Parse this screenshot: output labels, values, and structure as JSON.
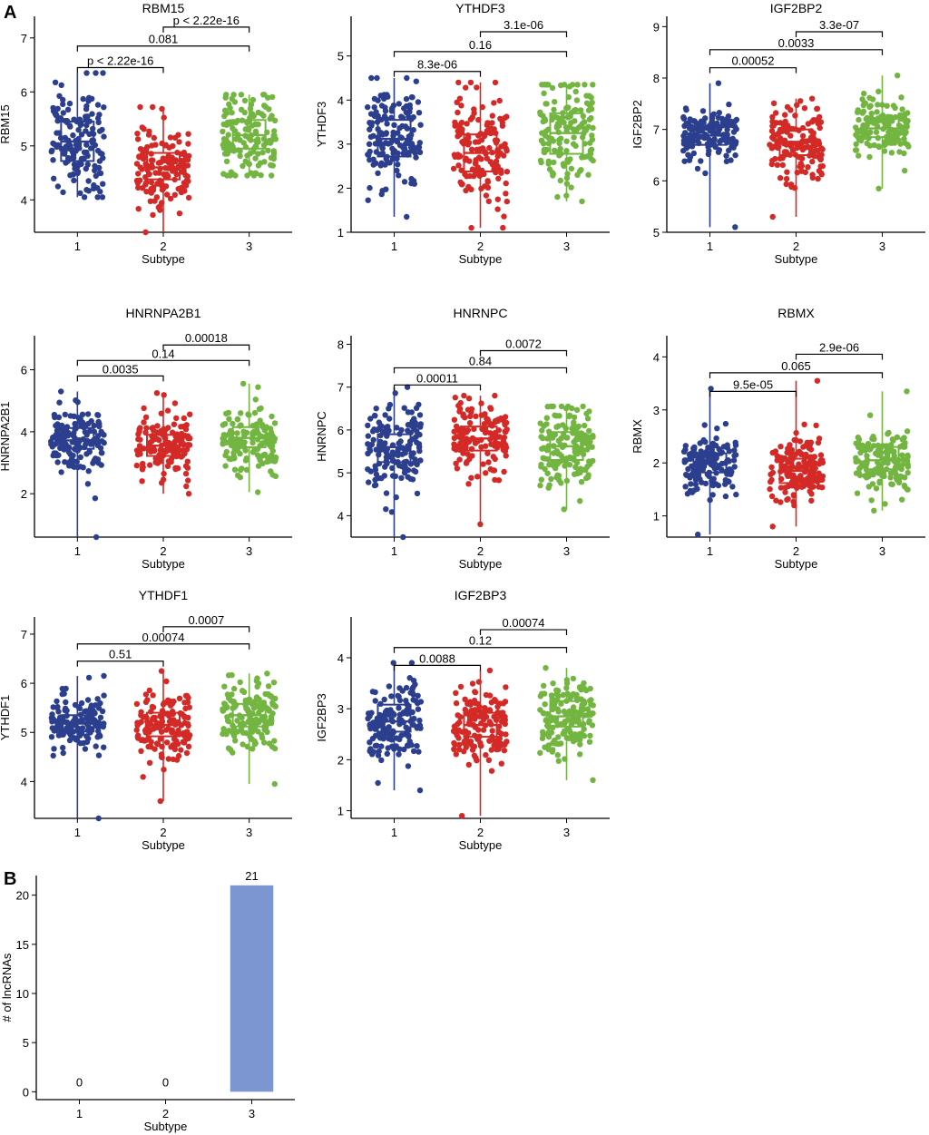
{
  "panel_labels": {
    "a": "A",
    "b": "B"
  },
  "colors": {
    "subtype_1": "#2c3f8f",
    "subtype_2": "#d42a27",
    "subtype_3": "#72b541",
    "bar": "#7b96d1",
    "axis": "#000000"
  },
  "chart_data": [
    {
      "type": "box",
      "title": "RBM15",
      "xlabel": "Subtype",
      "ylabel": "RBM15",
      "categories": [
        "1",
        "2",
        "3"
      ],
      "ylim": [
        3.4,
        7.4
      ],
      "yticks": [
        4,
        5,
        6,
        7
      ],
      "stats": [
        {
          "q1": 4.72,
          "median": 5.08,
          "q3": 5.45,
          "low": 4.05,
          "high": 6.35
        },
        {
          "q1": 4.38,
          "median": 4.6,
          "q3": 4.87,
          "low": 3.4,
          "high": 5.72
        },
        {
          "q1": 4.95,
          "median": 5.2,
          "q3": 5.48,
          "low": 4.45,
          "high": 5.95
        }
      ],
      "comparisons": [
        {
          "from": "1",
          "to": "2",
          "label": "p < 2.22e-16",
          "y": 6.45
        },
        {
          "from": "1",
          "to": "3",
          "label": "0.081",
          "y": 6.85
        },
        {
          "from": "2",
          "to": "3",
          "label": "p < 2.22e-16",
          "y": 7.2
        }
      ]
    },
    {
      "type": "box",
      "title": "YTHDF3",
      "xlabel": "Subtype",
      "ylabel": "YTHDF3",
      "categories": [
        "1",
        "2",
        "3"
      ],
      "ylim": [
        1,
        5.9
      ],
      "yticks": [
        1,
        2,
        3,
        4,
        5
      ],
      "stats": [
        {
          "q1": 2.72,
          "median": 3.12,
          "q3": 3.55,
          "low": 1.35,
          "high": 4.5
        },
        {
          "q1": 2.38,
          "median": 2.8,
          "q3": 3.22,
          "low": 1.1,
          "high": 4.4
        },
        {
          "q1": 2.78,
          "median": 3.25,
          "q3": 3.7,
          "low": 1.7,
          "high": 4.35
        }
      ],
      "comparisons": [
        {
          "from": "1",
          "to": "2",
          "label": "8.3e-06",
          "y": 4.65
        },
        {
          "from": "1",
          "to": "3",
          "label": "0.16",
          "y": 5.1
        },
        {
          "from": "2",
          "to": "3",
          "label": "3.1e-06",
          "y": 5.55
        }
      ]
    },
    {
      "type": "box",
      "title": "IGF2BP2",
      "xlabel": "Subtype",
      "ylabel": "IGF2BP2",
      "categories": [
        "1",
        "2",
        "3"
      ],
      "ylim": [
        5,
        9.2
      ],
      "yticks": [
        5,
        6,
        7,
        8,
        9
      ],
      "stats": [
        {
          "q1": 6.7,
          "median": 6.88,
          "q3": 7.05,
          "low": 5.1,
          "high": 7.9
        },
        {
          "q1": 6.5,
          "median": 6.76,
          "q3": 7.0,
          "low": 5.3,
          "high": 7.6
        },
        {
          "q1": 6.85,
          "median": 7.02,
          "q3": 7.22,
          "low": 5.85,
          "high": 8.05
        }
      ],
      "comparisons": [
        {
          "from": "1",
          "to": "2",
          "label": "0.00052",
          "y": 8.2
        },
        {
          "from": "1",
          "to": "3",
          "label": "0.0033",
          "y": 8.55
        },
        {
          "from": "2",
          "to": "3",
          "label": "3.3e-07",
          "y": 8.9
        }
      ]
    },
    {
      "type": "box",
      "title": "HNRNPA2B1",
      "xlabel": "Subtype",
      "ylabel": "HNRNPA2B1",
      "categories": [
        "1",
        "2",
        "3"
      ],
      "ylim": [
        0.6,
        7.1
      ],
      "yticks": [
        2,
        4,
        6
      ],
      "stats": [
        {
          "q1": 3.45,
          "median": 3.72,
          "q3": 4.12,
          "low": 0.6,
          "high": 5.3
        },
        {
          "q1": 3.22,
          "median": 3.55,
          "q3": 3.9,
          "low": 2.0,
          "high": 5.25
        },
        {
          "q1": 3.5,
          "median": 3.8,
          "q3": 4.15,
          "low": 2.05,
          "high": 5.55
        }
      ],
      "comparisons": [
        {
          "from": "1",
          "to": "2",
          "label": "0.0035",
          "y": 5.8
        },
        {
          "from": "1",
          "to": "3",
          "label": "0.14",
          "y": 6.3
        },
        {
          "from": "2",
          "to": "3",
          "label": "0.00018",
          "y": 6.8
        }
      ]
    },
    {
      "type": "box",
      "title": "HNRNPC",
      "xlabel": "Subtype",
      "ylabel": "HNRNPC",
      "categories": [
        "1",
        "2",
        "3"
      ],
      "ylim": [
        3.5,
        8.2
      ],
      "yticks": [
        4,
        5,
        6,
        7,
        8
      ],
      "stats": [
        {
          "q1": 5.25,
          "median": 5.6,
          "q3": 5.9,
          "low": 3.5,
          "high": 7.0
        },
        {
          "q1": 5.52,
          "median": 5.8,
          "q3": 6.08,
          "low": 3.8,
          "high": 6.8
        },
        {
          "q1": 5.3,
          "median": 5.62,
          "q3": 5.95,
          "low": 4.15,
          "high": 6.55
        }
      ],
      "comparisons": [
        {
          "from": "1",
          "to": "2",
          "label": "0.00011",
          "y": 7.05
        },
        {
          "from": "1",
          "to": "3",
          "label": "0.84",
          "y": 7.45
        },
        {
          "from": "2",
          "to": "3",
          "label": "0.0072",
          "y": 7.85
        }
      ]
    },
    {
      "type": "box",
      "title": "RBMX",
      "xlabel": "Subtype",
      "ylabel": "RBMX",
      "categories": [
        "1",
        "2",
        "3"
      ],
      "ylim": [
        0.6,
        4.4
      ],
      "yticks": [
        1,
        2,
        3,
        4
      ],
      "stats": [
        {
          "q1": 1.82,
          "median": 1.98,
          "q3": 2.18,
          "low": 0.65,
          "high": 3.4
        },
        {
          "q1": 1.62,
          "median": 1.85,
          "q3": 2.08,
          "low": 0.8,
          "high": 3.55
        },
        {
          "q1": 1.88,
          "median": 2.05,
          "q3": 2.3,
          "low": 1.1,
          "high": 3.35
        }
      ],
      "comparisons": [
        {
          "from": "1",
          "to": "2",
          "label": "9.5e-05",
          "y": 3.35
        },
        {
          "from": "1",
          "to": "3",
          "label": "0.065",
          "y": 3.7
        },
        {
          "from": "2",
          "to": "3",
          "label": "2.9e-06",
          "y": 4.05
        }
      ]
    },
    {
      "type": "box",
      "title": "YTHDF1",
      "xlabel": "Subtype",
      "ylabel": "YTHDF1",
      "categories": [
        "1",
        "2",
        "3"
      ],
      "ylim": [
        3.25,
        7.35
      ],
      "yticks": [
        4,
        5,
        6,
        7
      ],
      "stats": [
        {
          "q1": 5.02,
          "median": 5.18,
          "q3": 5.35,
          "low": 3.25,
          "high": 6.15
        },
        {
          "q1": 4.92,
          "median": 5.15,
          "q3": 5.4,
          "low": 3.6,
          "high": 6.25
        },
        {
          "q1": 5.12,
          "median": 5.35,
          "q3": 5.58,
          "low": 3.95,
          "high": 6.2
        }
      ],
      "comparisons": [
        {
          "from": "1",
          "to": "2",
          "label": "0.51",
          "y": 6.45
        },
        {
          "from": "1",
          "to": "3",
          "label": "0.00074",
          "y": 6.8
        },
        {
          "from": "2",
          "to": "3",
          "label": "0.0007",
          "y": 7.15
        }
      ]
    },
    {
      "type": "box",
      "title": "IGF2BP3",
      "xlabel": "Subtype",
      "ylabel": "IGF2BP3",
      "categories": [
        "1",
        "2",
        "3"
      ],
      "ylim": [
        0.85,
        4.8
      ],
      "yticks": [
        1,
        2,
        3,
        4
      ],
      "stats": [
        {
          "q1": 2.55,
          "median": 2.75,
          "q3": 3.08,
          "low": 1.4,
          "high": 3.9
        },
        {
          "q1": 2.45,
          "median": 2.68,
          "q3": 2.92,
          "low": 0.9,
          "high": 3.75
        },
        {
          "q1": 2.65,
          "median": 2.85,
          "q3": 3.15,
          "low": 1.6,
          "high": 3.8
        }
      ],
      "comparisons": [
        {
          "from": "1",
          "to": "2",
          "label": "0.0088",
          "y": 3.85
        },
        {
          "from": "1",
          "to": "3",
          "label": "0.12",
          "y": 4.2
        },
        {
          "from": "2",
          "to": "3",
          "label": "0.00074",
          "y": 4.55
        }
      ]
    },
    {
      "type": "bar",
      "title": "",
      "xlabel": "Subtype",
      "ylabel": "# of lncRNAs",
      "categories": [
        "1",
        "2",
        "3"
      ],
      "values": [
        0,
        0,
        21
      ],
      "ylim": [
        -0.8,
        22
      ],
      "yticks": [
        0,
        5,
        10,
        15,
        20
      ]
    }
  ]
}
